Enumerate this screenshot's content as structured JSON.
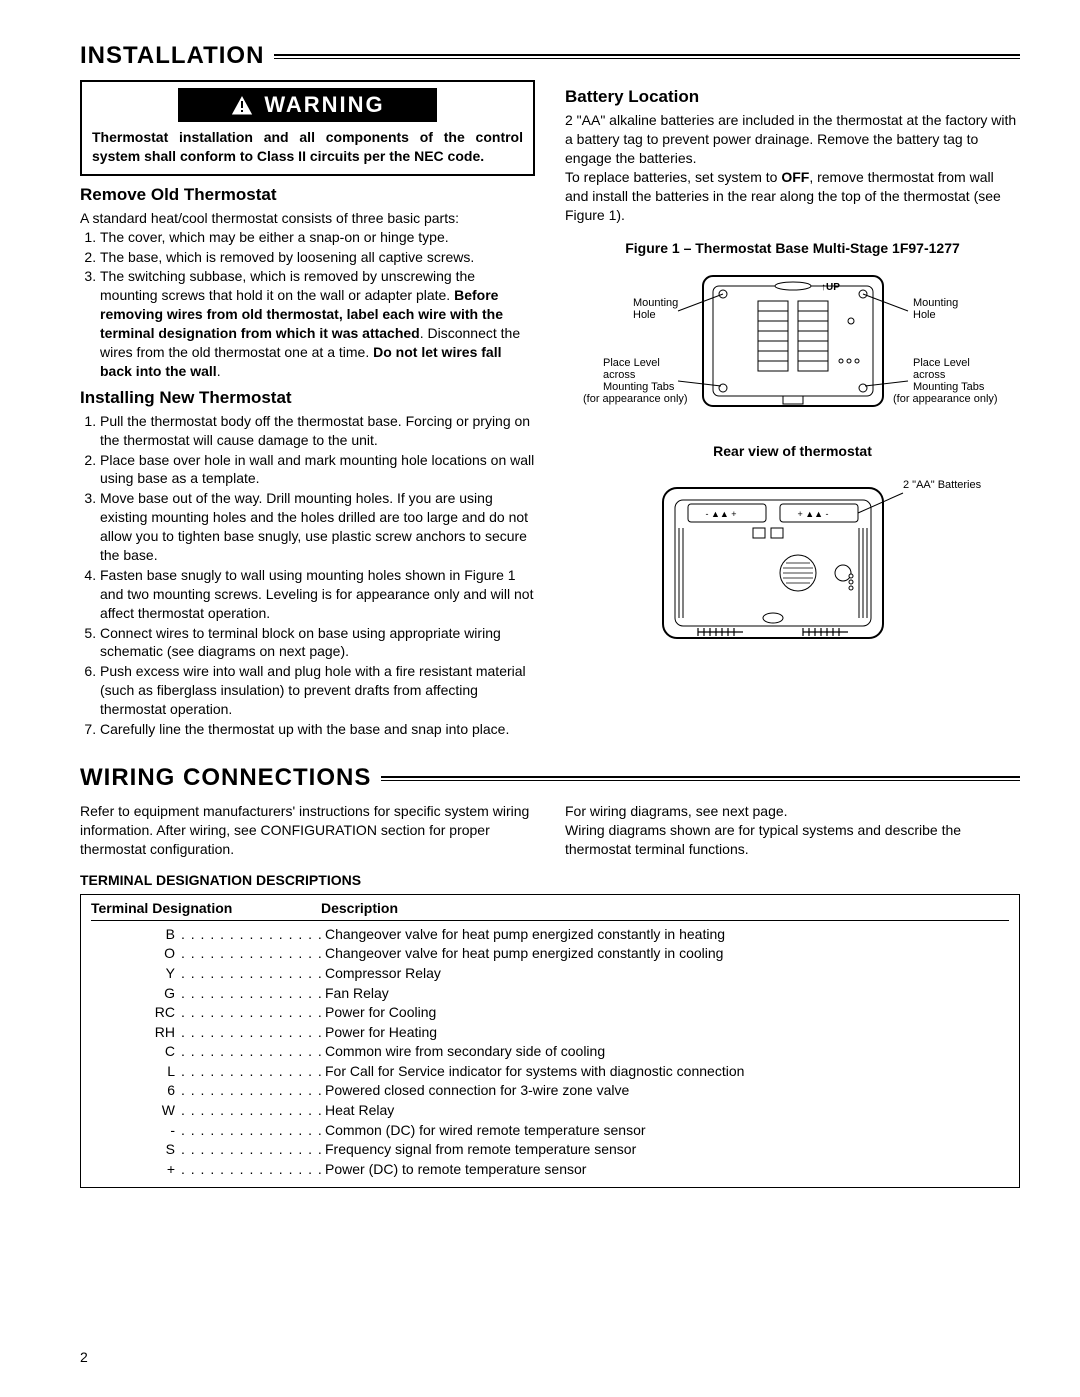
{
  "page_number": "2",
  "installation": {
    "title": "INSTALLATION",
    "warning_label": "WARNING",
    "warning_text": "Thermostat installation and all components of the control system shall conform to Class II circuits per the NEC code.",
    "remove_heading": "Remove Old Thermostat",
    "remove_intro": "A standard heat/cool thermostat consists of three basic parts:",
    "remove_items": [
      "The cover, which may be either a snap-on or hinge type.",
      "The base, which is removed by loosening all captive screws.",
      "The switching subbase, which is removed by unscrewing the mounting screws that hold it on the wall or adapter plate."
    ],
    "remove_bold1": "Before removing wires from old thermostat, label each wire with the terminal designation from which it was attached",
    "remove_after_bold1": ". Disconnect the wires from the old thermostat one at a time. ",
    "remove_bold2": "Do not let wires fall back into the wall",
    "install_heading": "Installing New Thermostat",
    "install_items": [
      "Pull the thermostat body off the thermostat base. Forcing or prying on the thermostat will cause damage to the unit.",
      "Place base over hole in wall and mark mounting hole locations on wall using base as a template.",
      "Move base out of the way. Drill mounting holes. If you are using existing mounting holes and the holes drilled are too large and do not allow you to tighten base snugly, use plastic screw anchors to secure the base.",
      "Fasten base snugly to wall using mounting holes shown in Figure 1 and two mounting screws. Leveling is for appearance only  and will not affect thermostat operation.",
      "Connect wires to terminal block on base using appropriate wiring schematic (see diagrams on next page).",
      "Push excess wire into wall and plug hole with a fire resistant material (such as fiberglass insulation) to prevent drafts from affecting thermostat operation.",
      "Carefully line the thermostat up with the base and snap into place."
    ],
    "battery_heading": "Battery Location",
    "battery_text1": "2 \"AA\" alkaline batteries are included in the thermostat at the factory with a battery tag to prevent power drainage. Remove the battery tag to engage the batteries.",
    "battery_text2a": "To replace batteries, set system to ",
    "battery_off": "OFF",
    "battery_text2b": ", remove thermostat from wall and install the batteries in the rear along the top of the thermostat (see Figure 1).",
    "figure1_caption": "Figure 1 – Thermostat Base Multi-Stage 1F97-1277",
    "figure1_labels": {
      "mounting_hole": "Mounting\nHole",
      "place_level": "Place Level\nacross\nMounting Tabs\n(for appearance only)",
      "up": "UP"
    },
    "rear_caption": "Rear view of thermostat",
    "rear_label": "2 \"AA\" Batteries"
  },
  "wiring": {
    "title": "WIRING CONNECTIONS",
    "intro_left": "Refer to equipment manufacturers' instructions for specific system wiring information. After wiring, see CONFIGURATION section for proper thermostat configuration.",
    "intro_right": "For wiring diagrams, see next page.\nWiring diagrams shown are for typical systems and describe the thermostat terminal functions.",
    "table_title": "TERMINAL DESIGNATION DESCRIPTIONS",
    "header_designation": "Terminal Designation",
    "header_description": "Description",
    "rows": [
      {
        "d": "B",
        "desc": "Changeover valve for heat pump energized constantly in heating"
      },
      {
        "d": "O",
        "desc": "Changeover valve for heat pump energized constantly in cooling"
      },
      {
        "d": "Y",
        "desc": "Compressor Relay"
      },
      {
        "d": "G",
        "desc": "Fan Relay"
      },
      {
        "d": "RC",
        "desc": "Power for Cooling"
      },
      {
        "d": "RH",
        "desc": "Power for Heating"
      },
      {
        "d": "C",
        "desc": "Common wire from secondary side of cooling"
      },
      {
        "d": "L",
        "desc": "For Call for Service indicator for systems with diagnostic connection"
      },
      {
        "d": "6",
        "desc": "Powered closed connection for 3-wire zone valve"
      },
      {
        "d": "W",
        "desc": "Heat Relay"
      },
      {
        "d": "-",
        "desc": "Common (DC) for wired remote temperature sensor"
      },
      {
        "d": "S",
        "desc": "Frequency signal from remote temperature sensor"
      },
      {
        "d": "+",
        "desc": "Power (DC) to remote temperature sensor"
      }
    ]
  }
}
